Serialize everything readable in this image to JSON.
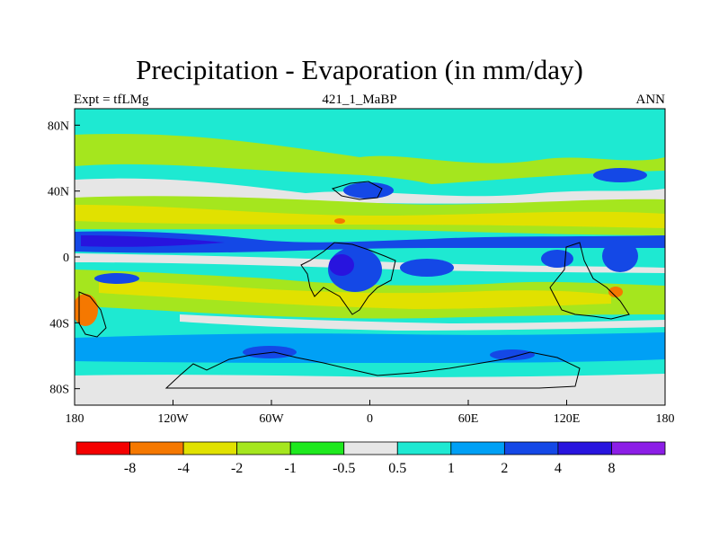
{
  "header": {
    "title": "Precipitation - Evaporation (in mm/day)",
    "left": "Expt = tfLMg",
    "center": "421_1_MaBP",
    "right": "ANN"
  },
  "map": {
    "x_ticks": [
      {
        "lon": -180,
        "label": "180"
      },
      {
        "lon": -120,
        "label": "120W"
      },
      {
        "lon": -60,
        "label": "60W"
      },
      {
        "lon": 0,
        "label": "0"
      },
      {
        "lon": 60,
        "label": "60E"
      },
      {
        "lon": 120,
        "label": "120E"
      },
      {
        "lon": 180,
        "label": "180"
      }
    ],
    "y_ticks": [
      {
        "lat": 80,
        "label": "80N"
      },
      {
        "lat": 40,
        "label": "40N"
      },
      {
        "lat": 0,
        "label": "0"
      },
      {
        "lat": -40,
        "label": "40S"
      },
      {
        "lat": -80,
        "label": "80S"
      }
    ],
    "background_color": "#1ee9d2"
  },
  "colorbar": {
    "colors": [
      "#f40000",
      "#f57800",
      "#e1e100",
      "#a5e61e",
      "#1ee91e",
      "#e6e6e6",
      "#1ee9d2",
      "#00a0f5",
      "#1448e6",
      "#2814de",
      "#8c1ee6"
    ],
    "labels": [
      "-8",
      "-4",
      "-2",
      "-1",
      "-0.5",
      "0.5",
      "1",
      "2",
      "4",
      "8"
    ]
  }
}
